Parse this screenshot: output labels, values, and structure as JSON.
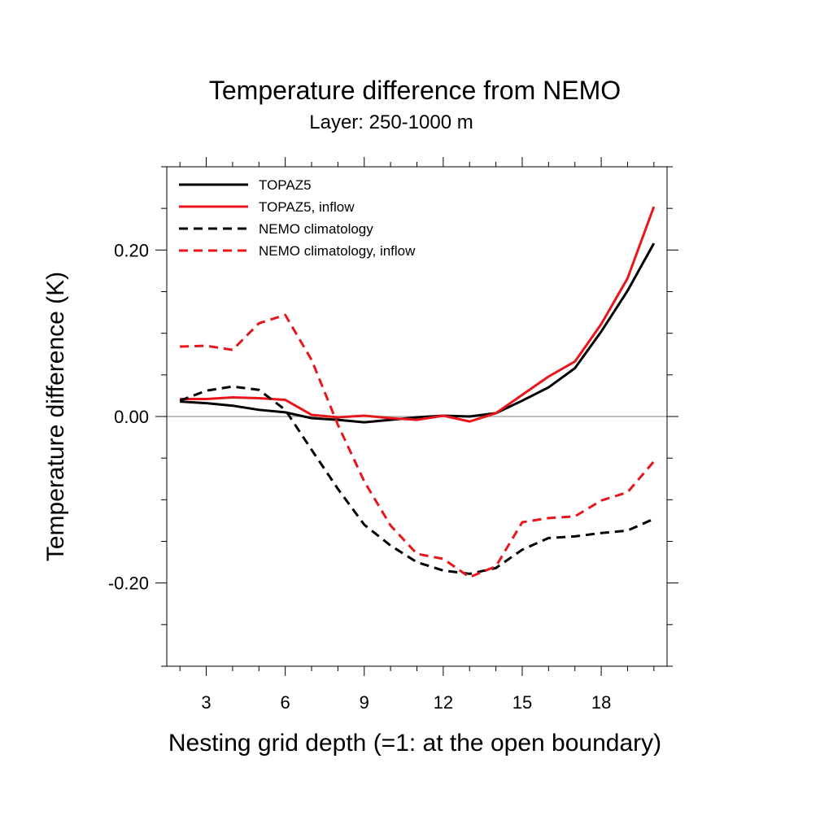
{
  "chart_data": {
    "type": "line",
    "title": "Temperature difference from NEMO",
    "subtitle": "Layer: 250-1000 m",
    "xlabel": "Nesting grid depth (=1: at the open boundary)",
    "ylabel": "Temperature difference (K)",
    "xlim": [
      1.5,
      20.5
    ],
    "ylim": [
      -0.3,
      0.3
    ],
    "xticks": [
      3,
      6,
      9,
      12,
      15,
      18
    ],
    "xtick_labels": [
      "3",
      "6",
      "9",
      "12",
      "15",
      "18"
    ],
    "yticks": [
      0.2,
      0.0,
      -0.2
    ],
    "ytick_labels": [
      "0.20",
      "0.00",
      "-0.20"
    ],
    "zero_line": true,
    "grid": false,
    "legend_position": "top-left",
    "x": [
      2,
      3,
      4,
      5,
      6,
      7,
      8,
      9,
      10,
      11,
      12,
      13,
      14,
      15,
      16,
      17,
      18,
      19,
      20
    ],
    "series": [
      {
        "name": "TOPAZ5",
        "color": "#000000",
        "dash": "solid",
        "values": [
          0.018,
          0.016,
          0.013,
          0.008,
          0.005,
          -0.002,
          -0.004,
          -0.007,
          -0.004,
          -0.001,
          0.001,
          0.0,
          0.004,
          0.019,
          0.035,
          0.058,
          0.102,
          0.151,
          0.208
        ]
      },
      {
        "name": "TOPAZ5, inflow",
        "color": "#e8161b",
        "dash": "solid",
        "values": [
          0.021,
          0.021,
          0.023,
          0.022,
          0.02,
          0.002,
          -0.001,
          0.001,
          -0.002,
          -0.004,
          0.001,
          -0.006,
          0.004,
          0.026,
          0.048,
          0.066,
          0.111,
          0.166,
          0.252
        ]
      },
      {
        "name": "NEMO climatology",
        "color": "#000000",
        "dash": "dashed",
        "values": [
          0.019,
          0.031,
          0.036,
          0.032,
          0.008,
          -0.04,
          -0.087,
          -0.13,
          -0.155,
          -0.175,
          -0.185,
          -0.189,
          -0.182,
          -0.16,
          -0.146,
          -0.144,
          -0.14,
          -0.137,
          -0.123
        ]
      },
      {
        "name": "NEMO climatology, inflow",
        "color": "#e8161b",
        "dash": "dashed",
        "values": [
          0.084,
          0.085,
          0.08,
          0.112,
          0.122,
          0.068,
          -0.01,
          -0.078,
          -0.131,
          -0.165,
          -0.171,
          -0.193,
          -0.18,
          -0.127,
          -0.122,
          -0.12,
          -0.101,
          -0.091,
          -0.054
        ]
      }
    ]
  }
}
